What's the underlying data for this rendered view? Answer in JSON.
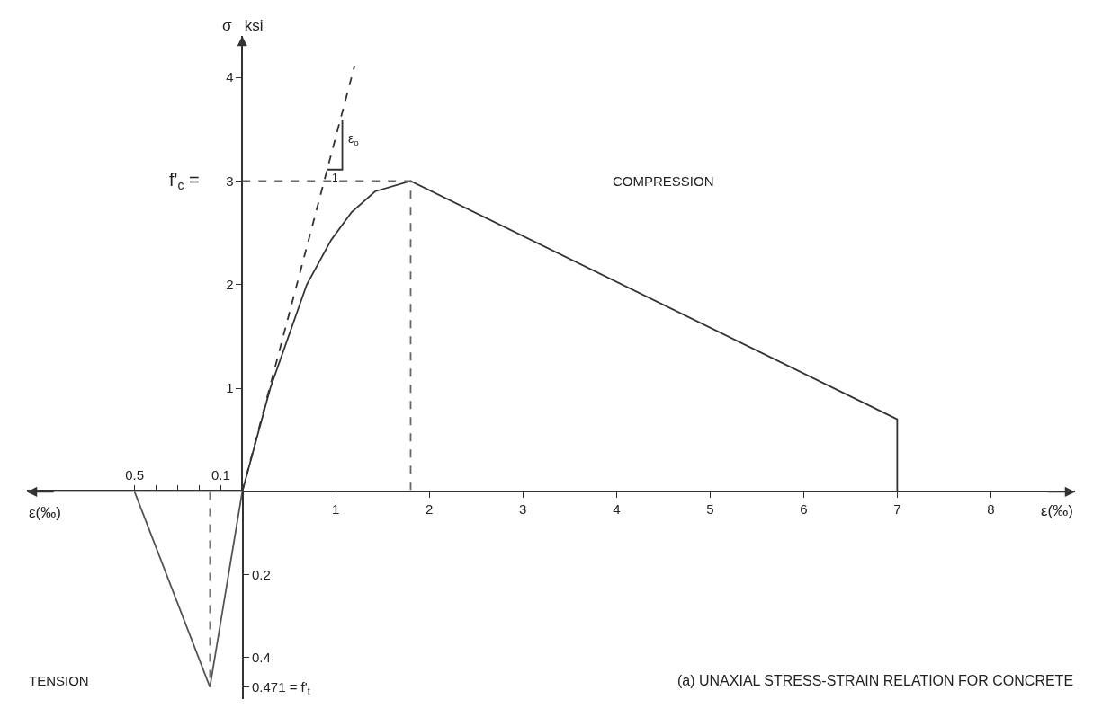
{
  "chart_data": [
    {
      "type": "line",
      "ylabel": "σ   ksi",
      "xlabel": "ε(‰)",
      "annotations": [
        "f'$_{c}$ =",
        "COMPRESSION",
        "(a) UNAXIAL STRESS-STRAIN RELATION FOR CONCRETE",
        "ε$_{o}$",
        "1"
      ],
      "xlim": [
        -2.3,
        8.9
      ],
      "xticks": [
        1,
        2,
        3,
        4,
        5,
        6,
        7,
        8
      ],
      "ylim": [
        -2.0,
        4.4
      ],
      "yticks": [
        1,
        2,
        3,
        4
      ],
      "grid": false,
      "marker": "none",
      "series": [
        {
          "color": "#333333",
          "line_style": "solid",
          "x": [
            0,
            0.3,
            0.69,
            0.95,
            1.17,
            1.42,
            1.8,
            7,
            7
          ],
          "values": [
            0,
            1,
            2,
            2.43,
            2.7,
            2.9,
            3,
            0.7,
            0
          ]
        },
        {
          "color": "#333333",
          "line_style": "dashed",
          "x": [
            0,
            1.2
          ],
          "values": [
            0,
            4.11
          ]
        },
        {
          "color": "#333333",
          "line_style": "solid",
          "x": [
            0.91,
            1.07,
            1.07
          ],
          "values": [
            3.11,
            3.11,
            3.59
          ]
        },
        {
          "color": "#666666",
          "line_style": "dashed",
          "x": [
            0,
            1.8,
            1.8
          ],
          "values": [
            3,
            3,
            0
          ]
        }
      ]
    },
    {
      "type": "line",
      "xlabel": "ε(‰)",
      "annotations": [
        "TENSION"
      ],
      "xlim": [
        -1.0,
        0
      ],
      "xticks": [
        {
          "value": -0.5,
          "label": "0.5"
        },
        {
          "value": -0.4,
          "label": null
        },
        {
          "value": -0.3,
          "label": null
        },
        {
          "value": -0.2,
          "label": null
        },
        {
          "value": -0.1,
          "label": "0.1"
        }
      ],
      "ylim": [
        -0.5,
        0
      ],
      "yticks": [
        {
          "value": -0.2,
          "label": "0.2"
        },
        {
          "value": -0.4,
          "label": "0.4"
        },
        {
          "value": -0.471,
          "label": "0.471 = f'$_{t}$"
        }
      ],
      "grid": false,
      "marker": "none",
      "series": [
        {
          "color": "#555555",
          "line_style": "solid",
          "x": [
            0,
            -0.15,
            -0.5
          ],
          "values": [
            0,
            -0.471,
            0
          ]
        },
        {
          "color": "#777777",
          "line_style": "dashed",
          "x": [
            -0.15,
            -0.15
          ],
          "values": [
            0,
            -0.471
          ]
        }
      ]
    }
  ]
}
